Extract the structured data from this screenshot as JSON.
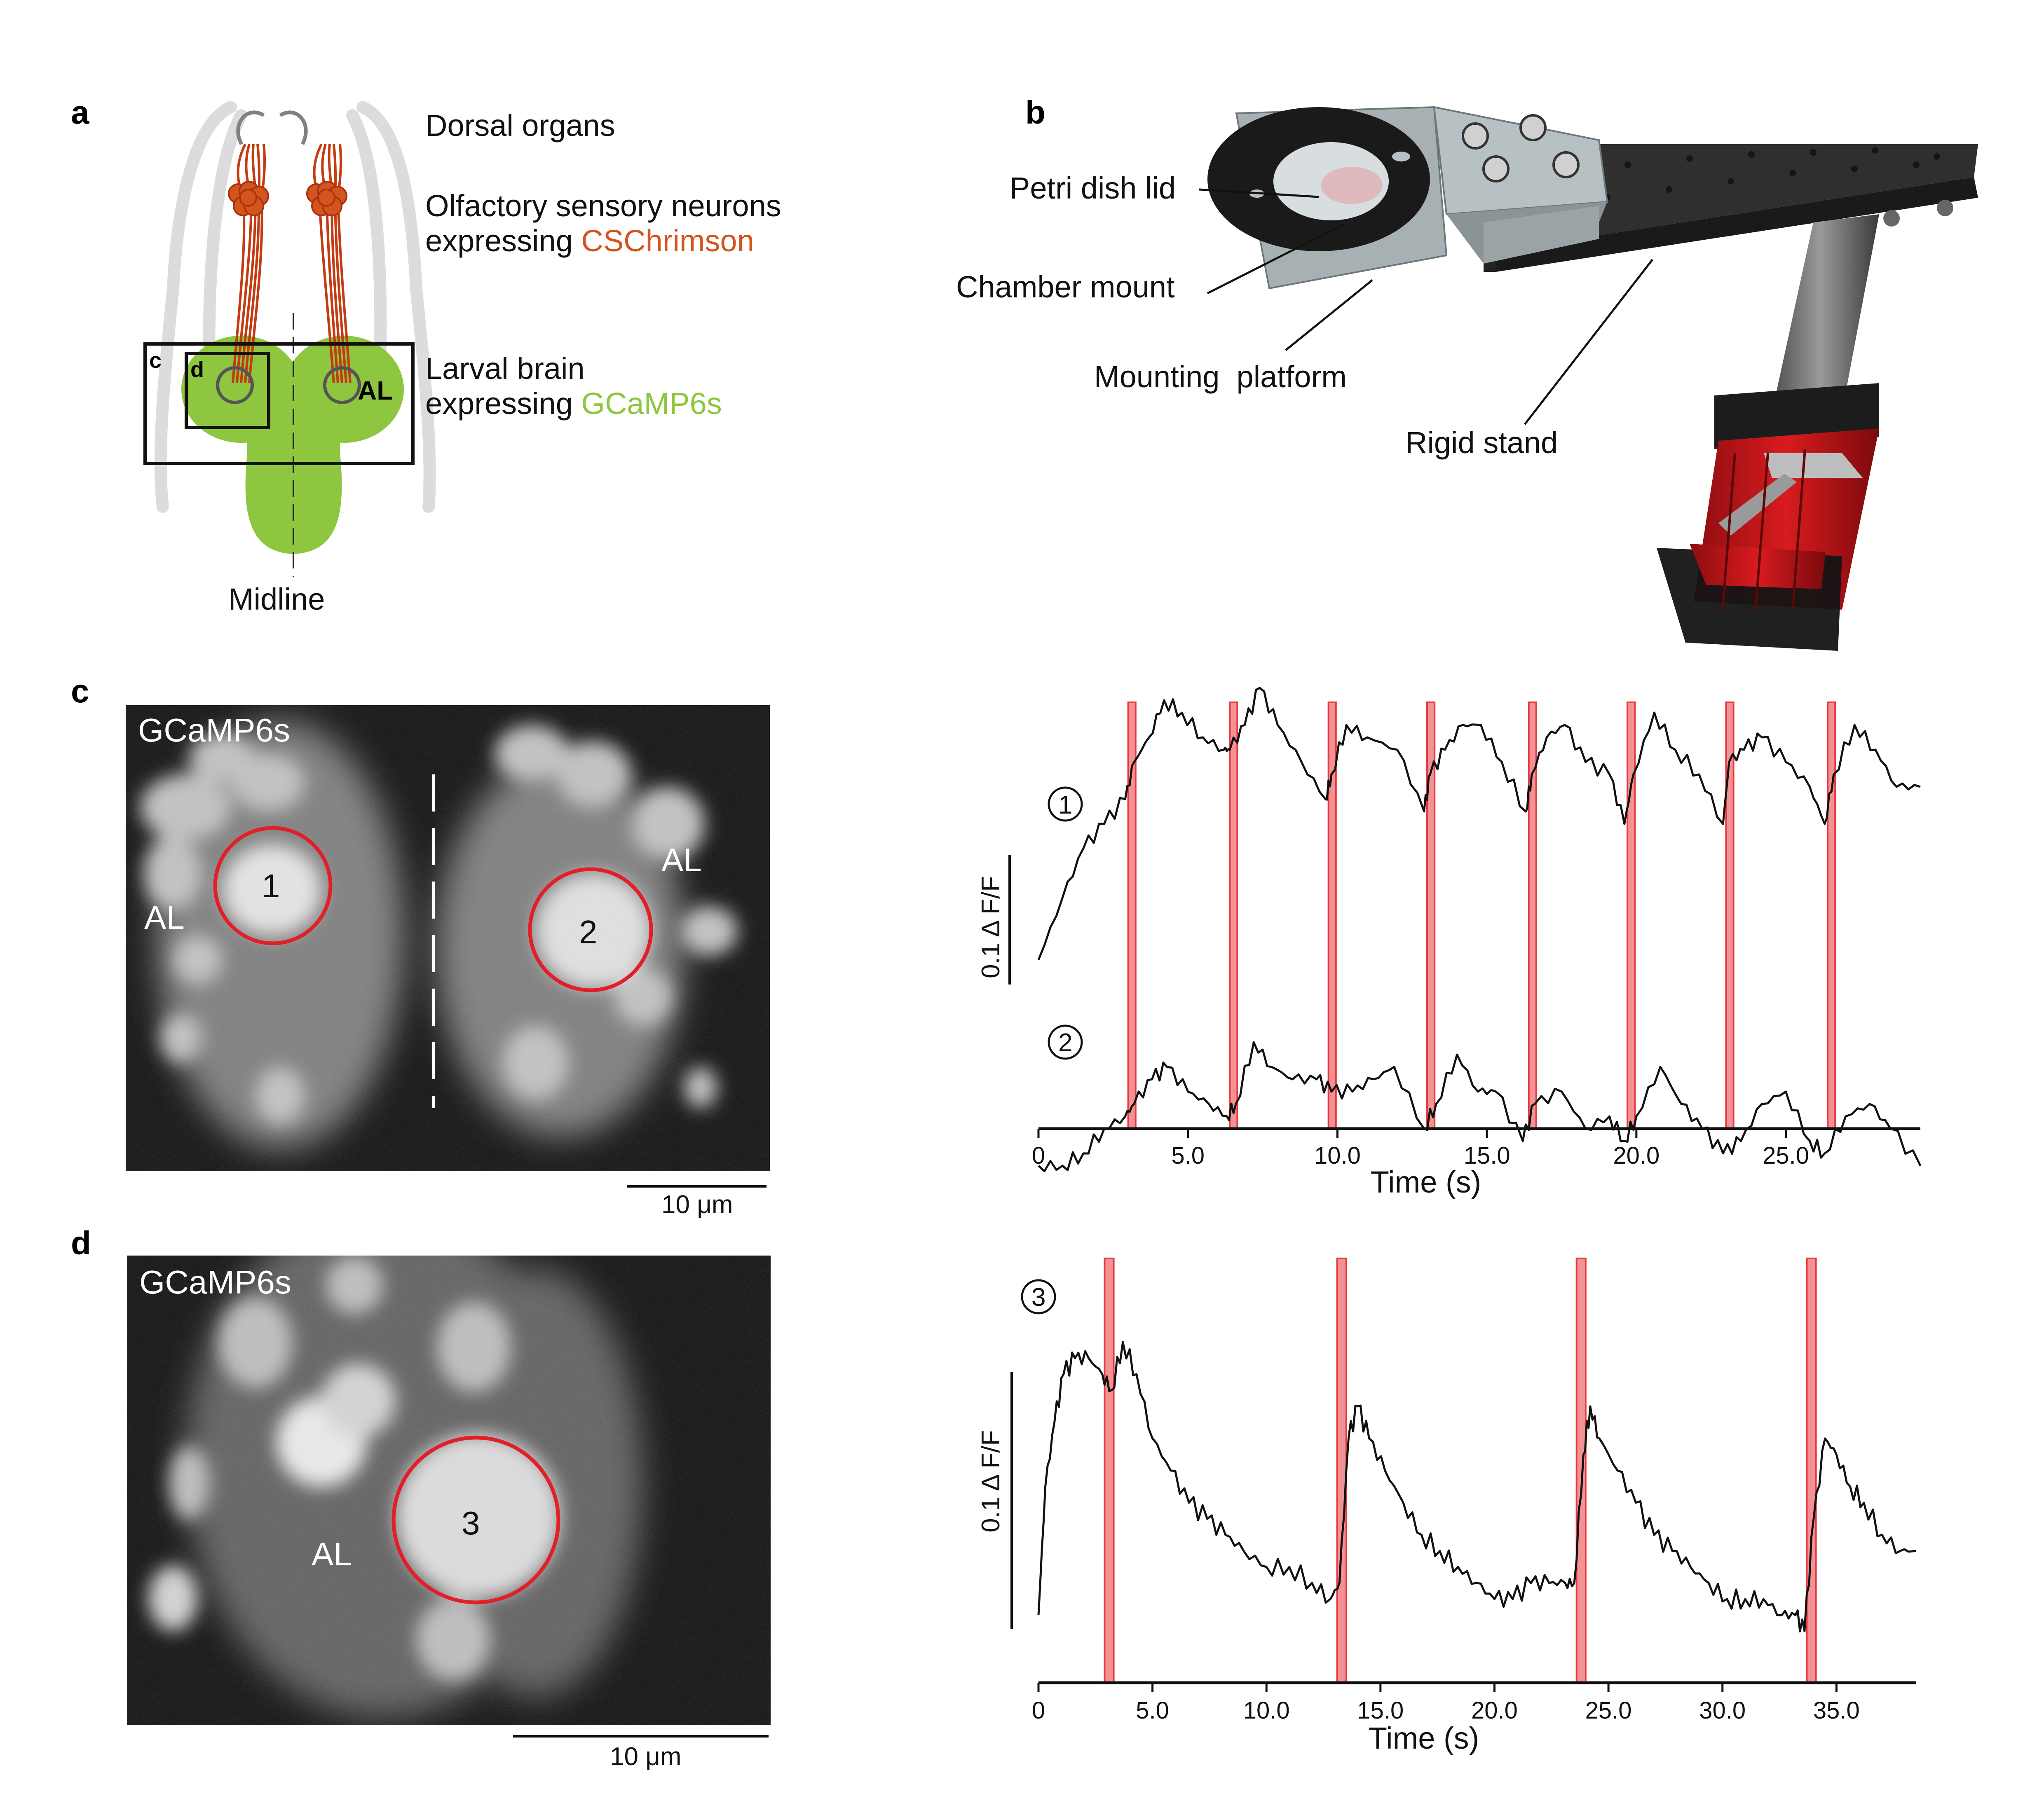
{
  "panels": {
    "a": {
      "label": "a",
      "dorsal_organs": "Dorsal organs",
      "osn_line1": "Olfactory sensory neurons",
      "osn_line2_prefix": "expressing ",
      "osn_line2_colored": "CSChrimson",
      "brain_line1": "Larval brain",
      "brain_line2_prefix": "expressing ",
      "brain_line2_colored": "GCaMP6s",
      "al_label": "AL",
      "box_c": "c",
      "box_d": "d",
      "midline": "Midline",
      "colors": {
        "chrimson": "#d4541d",
        "gcamp": "#8ec63f",
        "neuron": "#c43b12",
        "larva_outline": "#dcdcdc"
      }
    },
    "b": {
      "label": "b",
      "petri_dish_lid": "Petri dish lid",
      "chamber_mount": "Chamber mount",
      "mounting_platform": "Mounting  platform",
      "rigid_stand": "Rigid stand",
      "colors": {
        "platform": "#a7b1b4",
        "stand": "#2b2b2b",
        "base": "#c9161b"
      }
    },
    "c": {
      "label": "c",
      "image_title": "GCaMP6s",
      "roi_1": "1",
      "roi_2": "2",
      "al_left": "AL",
      "al_right": "AL",
      "scalebar": "10 μm",
      "trace_1_marker": "1",
      "trace_2_marker": "2",
      "ylabel": "0.1 Δ F/F"
    },
    "d": {
      "label": "d",
      "image_title": "GCaMP6s",
      "roi_3": "3",
      "al": "AL",
      "scalebar": "10 μm",
      "trace_3_marker": "3",
      "ylabel": "0.1 Δ F/F"
    }
  },
  "chart_data": [
    {
      "type": "line",
      "panel": "c",
      "xlabel": "Time (s)",
      "ylabel": "0.1 Δ F/F",
      "xlim": [
        0,
        29.5
      ],
      "xticks": [
        0,
        5.0,
        10.0,
        15.0,
        20.0,
        25.0
      ],
      "xtick_labels": [
        "0",
        "5.0",
        "10.0",
        "15.0",
        "20.0",
        "25.0"
      ],
      "stimuli_onsets": [
        3.0,
        6.4,
        9.7,
        13.0,
        16.4,
        19.7,
        23.0,
        26.4
      ],
      "stimulus_duration": 0.25,
      "stimulus_color": "#e8383c",
      "scalebar_dff": 0.1,
      "series": [
        {
          "name": "1",
          "points": [
            [
              0.0,
              -0.06
            ],
            [
              0.8,
              -0.01
            ],
            [
              1.5,
              0.03
            ],
            [
              2.2,
              0.05
            ],
            [
              2.9,
              0.07
            ],
            [
              3.2,
              0.1
            ],
            [
              3.7,
              0.12
            ],
            [
              4.2,
              0.15
            ],
            [
              4.8,
              0.14
            ],
            [
              5.5,
              0.12
            ],
            [
              6.2,
              0.11
            ],
            [
              6.4,
              0.11
            ],
            [
              6.9,
              0.13
            ],
            [
              7.4,
              0.16
            ],
            [
              8.0,
              0.13
            ],
            [
              8.8,
              0.1
            ],
            [
              9.6,
              0.07
            ],
            [
              9.8,
              0.09
            ],
            [
              10.3,
              0.13
            ],
            [
              11.0,
              0.12
            ],
            [
              12.0,
              0.11
            ],
            [
              12.9,
              0.06
            ],
            [
              13.1,
              0.09
            ],
            [
              13.6,
              0.11
            ],
            [
              14.2,
              0.13
            ],
            [
              14.8,
              0.13
            ],
            [
              15.5,
              0.1
            ],
            [
              16.3,
              0.06
            ],
            [
              16.5,
              0.09
            ],
            [
              17.0,
              0.12
            ],
            [
              17.6,
              0.13
            ],
            [
              18.3,
              0.1
            ],
            [
              19.1,
              0.09
            ],
            [
              19.6,
              0.05
            ],
            [
              19.9,
              0.09
            ],
            [
              20.6,
              0.14
            ],
            [
              21.3,
              0.11
            ],
            [
              22.1,
              0.09
            ],
            [
              22.9,
              0.05
            ],
            [
              23.1,
              0.1
            ],
            [
              23.6,
              0.11
            ],
            [
              24.2,
              0.12
            ],
            [
              25.0,
              0.1
            ],
            [
              25.8,
              0.08
            ],
            [
              26.3,
              0.05
            ],
            [
              26.6,
              0.09
            ],
            [
              27.3,
              0.13
            ],
            [
              28.0,
              0.11
            ],
            [
              28.7,
              0.08
            ],
            [
              29.5,
              0.08
            ]
          ]
        },
        {
          "name": "2",
          "points": [
            [
              0.0,
              -0.12
            ],
            [
              0.8,
              -0.12
            ],
            [
              1.5,
              -0.11
            ],
            [
              2.2,
              -0.09
            ],
            [
              2.9,
              -0.08
            ],
            [
              3.2,
              -0.07
            ],
            [
              3.8,
              -0.05
            ],
            [
              4.3,
              -0.04
            ],
            [
              5.0,
              -0.06
            ],
            [
              5.7,
              -0.07
            ],
            [
              6.3,
              -0.08
            ],
            [
              6.6,
              -0.07
            ],
            [
              7.2,
              -0.02
            ],
            [
              7.8,
              -0.04
            ],
            [
              8.5,
              -0.05
            ],
            [
              9.3,
              -0.05
            ],
            [
              9.8,
              -0.06
            ],
            [
              10.5,
              -0.06
            ],
            [
              11.2,
              -0.05
            ],
            [
              11.9,
              -0.04
            ],
            [
              12.9,
              -0.09
            ],
            [
              13.3,
              -0.07
            ],
            [
              14.0,
              -0.03
            ],
            [
              14.7,
              -0.06
            ],
            [
              15.3,
              -0.06
            ],
            [
              16.2,
              -0.1
            ],
            [
              16.6,
              -0.07
            ],
            [
              17.5,
              -0.06
            ],
            [
              18.3,
              -0.09
            ],
            [
              19.1,
              -0.08
            ],
            [
              19.6,
              -0.1
            ],
            [
              20.0,
              -0.08
            ],
            [
              20.8,
              -0.04
            ],
            [
              21.5,
              -0.07
            ],
            [
              22.2,
              -0.09
            ],
            [
              22.9,
              -0.11
            ],
            [
              23.5,
              -0.1
            ],
            [
              24.2,
              -0.07
            ],
            [
              25.0,
              -0.06
            ],
            [
              25.8,
              -0.1
            ],
            [
              26.3,
              -0.11
            ],
            [
              27.0,
              -0.08
            ],
            [
              27.8,
              -0.07
            ],
            [
              28.5,
              -0.09
            ],
            [
              29.5,
              -0.12
            ]
          ]
        }
      ]
    },
    {
      "type": "line",
      "panel": "d",
      "xlabel": "Time (s)",
      "ylabel": "0.1 Δ F/F",
      "xlim": [
        0,
        38.5
      ],
      "xticks": [
        0,
        5.0,
        10.0,
        15.0,
        20.0,
        25.0,
        30.0,
        35.0
      ],
      "xtick_labels": [
        "0",
        "5.0",
        "10.0",
        "15.0",
        "20.0",
        "25.0",
        "30.0",
        "35.0"
      ],
      "stimuli_onsets": [
        2.9,
        13.1,
        23.6,
        33.7
      ],
      "stimulus_duration": 0.4,
      "stimulus_color": "#e8383c",
      "scalebar_dff": 0.1,
      "series": [
        {
          "name": "3",
          "points": [
            [
              0.0,
              0.01
            ],
            [
              0.3,
              0.09
            ],
            [
              0.7,
              0.13
            ],
            [
              1.1,
              0.16
            ],
            [
              1.6,
              0.17
            ],
            [
              2.2,
              0.17
            ],
            [
              2.8,
              0.16
            ],
            [
              3.2,
              0.15
            ],
            [
              3.7,
              0.18
            ],
            [
              4.3,
              0.16
            ],
            [
              5.0,
              0.12
            ],
            [
              5.8,
              0.1
            ],
            [
              6.6,
              0.08
            ],
            [
              7.4,
              0.07
            ],
            [
              8.2,
              0.06
            ],
            [
              9.0,
              0.05
            ],
            [
              10.0,
              0.04
            ],
            [
              11.0,
              0.04
            ],
            [
              12.0,
              0.03
            ],
            [
              12.8,
              0.02
            ],
            [
              13.2,
              0.03
            ],
            [
              13.6,
              0.12
            ],
            [
              14.0,
              0.14
            ],
            [
              14.5,
              0.12
            ],
            [
              15.2,
              0.1
            ],
            [
              16.0,
              0.08
            ],
            [
              16.8,
              0.06
            ],
            [
              17.6,
              0.05
            ],
            [
              18.4,
              0.04
            ],
            [
              19.2,
              0.03
            ],
            [
              20.0,
              0.02
            ],
            [
              20.8,
              0.02
            ],
            [
              21.6,
              0.03
            ],
            [
              22.4,
              0.03
            ],
            [
              23.1,
              0.03
            ],
            [
              23.5,
              0.03
            ],
            [
              23.9,
              0.11
            ],
            [
              24.2,
              0.14
            ],
            [
              24.6,
              0.12
            ],
            [
              25.4,
              0.1
            ],
            [
              26.2,
              0.08
            ],
            [
              27.0,
              0.06
            ],
            [
              27.8,
              0.05
            ],
            [
              28.6,
              0.04
            ],
            [
              29.4,
              0.03
            ],
            [
              30.2,
              0.02
            ],
            [
              31.0,
              0.02
            ],
            [
              31.8,
              0.02
            ],
            [
              32.6,
              0.01
            ],
            [
              33.2,
              0.01
            ],
            [
              33.6,
              0.0
            ],
            [
              34.0,
              0.07
            ],
            [
              34.5,
              0.12
            ],
            [
              35.0,
              0.11
            ],
            [
              35.6,
              0.09
            ],
            [
              36.2,
              0.08
            ],
            [
              37.0,
              0.06
            ],
            [
              37.8,
              0.05
            ],
            [
              38.5,
              0.05
            ]
          ]
        }
      ]
    }
  ]
}
